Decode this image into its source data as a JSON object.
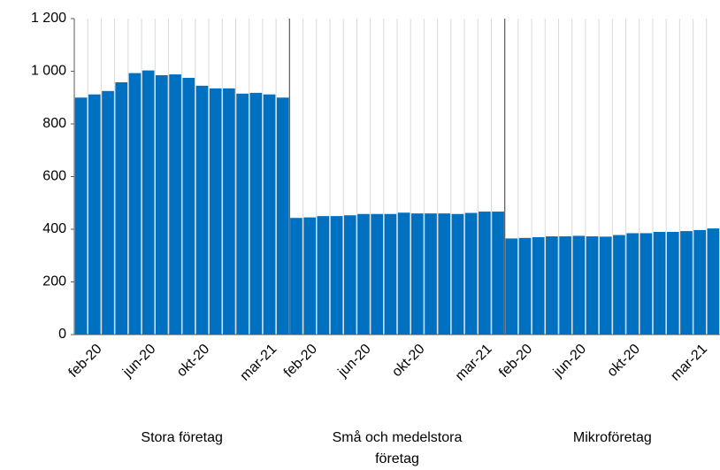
{
  "chart_data": {
    "type": "grouped-panel-bar",
    "color": "#0070c0",
    "categories": [
      null,
      "feb-20",
      null,
      null,
      null,
      "jun-20",
      null,
      null,
      null,
      "okt-20",
      null,
      null,
      null,
      null,
      "mar-21",
      null
    ],
    "groups": [
      {
        "label": "Stora företag",
        "values": [
          900,
          912,
          925,
          958,
          993,
          1003,
          985,
          988,
          975,
          945,
          935,
          935,
          915,
          918,
          912,
          900
        ]
      },
      {
        "label": "Små och medelstora företag",
        "values": [
          443,
          445,
          450,
          450,
          453,
          458,
          458,
          458,
          463,
          460,
          460,
          460,
          458,
          462,
          467,
          467
        ]
      },
      {
        "label": "Mikroföretag",
        "values": [
          365,
          367,
          370,
          373,
          373,
          375,
          373,
          372,
          378,
          385,
          385,
          390,
          390,
          393,
          397,
          403
        ]
      }
    ],
    "ylim": [
      0,
      1200
    ],
    "yticks": [
      0,
      200,
      400,
      600,
      800,
      {
        "value": 1000,
        "label": "1 000"
      },
      {
        "value": 1200,
        "label": "1 200"
      }
    ]
  }
}
